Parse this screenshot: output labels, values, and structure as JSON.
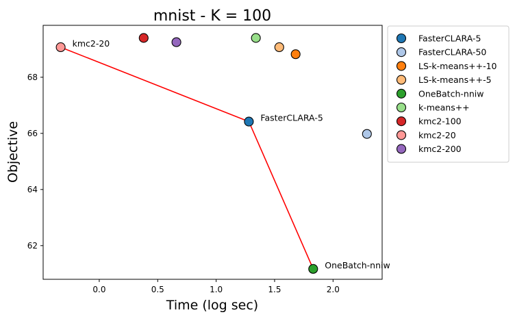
{
  "chart_data": {
    "type": "scatter",
    "title": "mnist - K = 100",
    "xlabel": "Time (log sec)",
    "ylabel": "Objective",
    "xlim": [
      -0.48,
      2.42
    ],
    "ylim": [
      60.8,
      69.85
    ],
    "xticks": [
      0.0,
      0.5,
      1.0,
      1.5,
      2.0
    ],
    "xtick_labels": [
      "0.0",
      "0.5",
      "1.0",
      "1.5",
      "2.0"
    ],
    "yticks": [
      62,
      64,
      66,
      68
    ],
    "ytick_labels": [
      "62",
      "64",
      "66",
      "68"
    ],
    "grid": false,
    "legend_position": "outside-right-top",
    "series": [
      {
        "name": "FasterCLARA-5",
        "color": "#1f77b4",
        "x": 1.28,
        "y": 66.42
      },
      {
        "name": "FasterCLARA-50",
        "color": "#aec7e8",
        "x": 2.29,
        "y": 65.98
      },
      {
        "name": "LS-k-means++-10",
        "color": "#ff7f0e",
        "x": 1.68,
        "y": 68.82
      },
      {
        "name": "LS-k-means++-5",
        "color": "#ffbb78",
        "x": 1.54,
        "y": 69.07
      },
      {
        "name": "OneBatch-nniw",
        "color": "#2ca02c",
        "x": 1.83,
        "y": 61.17
      },
      {
        "name": "k-means++",
        "color": "#98df8a",
        "x": 1.34,
        "y": 69.4
      },
      {
        "name": "kmc2-100",
        "color": "#d62728",
        "x": 0.38,
        "y": 69.4
      },
      {
        "name": "kmc2-20",
        "color": "#ff9896",
        "x": -0.33,
        "y": 69.07
      },
      {
        "name": "kmc2-200",
        "color": "#9467bd",
        "x": 0.66,
        "y": 69.25
      }
    ],
    "pareto_front": {
      "color": "#ff0000",
      "points": [
        [
          -0.33,
          69.07
        ],
        [
          1.28,
          66.42
        ],
        [
          1.83,
          61.17
        ]
      ]
    },
    "annotations": [
      {
        "text": "kmc2-20",
        "x": -0.33,
        "y": 69.07
      },
      {
        "text": "FasterCLARA-5",
        "x": 1.28,
        "y": 66.42
      },
      {
        "text": "OneBatch-nniw",
        "x": 1.83,
        "y": 61.17
      }
    ]
  }
}
